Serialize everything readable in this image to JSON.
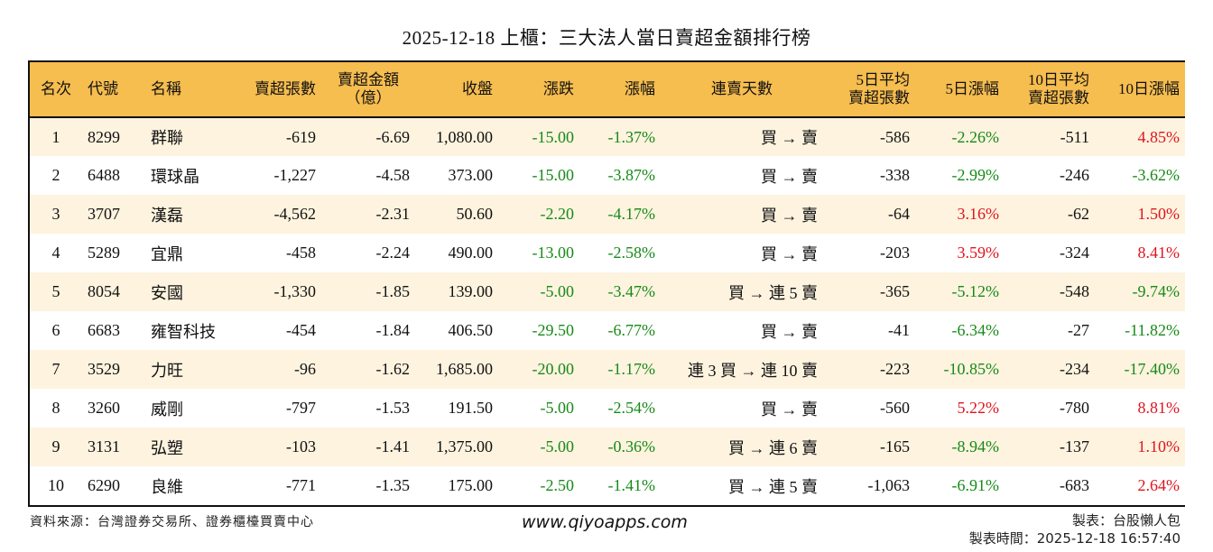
{
  "title": "2025-12-18 上櫃：三大法人當日賣超金額排行榜",
  "table": {
    "headers": [
      {
        "line1": "名次",
        "line2": ""
      },
      {
        "line1": "代號",
        "line2": ""
      },
      {
        "line1": "名稱",
        "line2": ""
      },
      {
        "line1": "賣超張數",
        "line2": ""
      },
      {
        "line1": "賣超金額",
        "line2": "（億）"
      },
      {
        "line1": "收盤",
        "line2": ""
      },
      {
        "line1": "漲跌",
        "line2": ""
      },
      {
        "line1": "漲幅",
        "line2": ""
      },
      {
        "line1": "連賣天數",
        "line2": ""
      },
      {
        "line1": "5日平均",
        "line2": "賣超張數"
      },
      {
        "line1": "5日漲幅",
        "line2": ""
      },
      {
        "line1": "10日平均",
        "line2": "賣超張數"
      },
      {
        "line1": "10日漲幅",
        "line2": ""
      }
    ],
    "rows": [
      {
        "rank": "1",
        "code": "8299",
        "name": "群聯",
        "sell_shares": "-619",
        "sell_amount": "-6.69",
        "close": "1,080.00",
        "change": "-15.00",
        "change_pct": "-1.37%",
        "streak": "買 → 賣",
        "avg5": "-586",
        "pct5": "-2.26%",
        "pct5_dir": "neg",
        "avg10": "-511",
        "pct10": "4.85%",
        "pct10_dir": "pos"
      },
      {
        "rank": "2",
        "code": "6488",
        "name": "環球晶",
        "sell_shares": "-1,227",
        "sell_amount": "-4.58",
        "close": "373.00",
        "change": "-15.00",
        "change_pct": "-3.87%",
        "streak": "買 → 賣",
        "avg5": "-338",
        "pct5": "-2.99%",
        "pct5_dir": "neg",
        "avg10": "-246",
        "pct10": "-3.62%",
        "pct10_dir": "neg"
      },
      {
        "rank": "3",
        "code": "3707",
        "name": "漢磊",
        "sell_shares": "-4,562",
        "sell_amount": "-2.31",
        "close": "50.60",
        "change": "-2.20",
        "change_pct": "-4.17%",
        "streak": "買 → 賣",
        "avg5": "-64",
        "pct5": "3.16%",
        "pct5_dir": "pos",
        "avg10": "-62",
        "pct10": "1.50%",
        "pct10_dir": "pos"
      },
      {
        "rank": "4",
        "code": "5289",
        "name": "宜鼎",
        "sell_shares": "-458",
        "sell_amount": "-2.24",
        "close": "490.00",
        "change": "-13.00",
        "change_pct": "-2.58%",
        "streak": "買 → 賣",
        "avg5": "-203",
        "pct5": "3.59%",
        "pct5_dir": "pos",
        "avg10": "-324",
        "pct10": "8.41%",
        "pct10_dir": "pos"
      },
      {
        "rank": "5",
        "code": "8054",
        "name": "安國",
        "sell_shares": "-1,330",
        "sell_amount": "-1.85",
        "close": "139.00",
        "change": "-5.00",
        "change_pct": "-3.47%",
        "streak": "買 → 連 5 賣",
        "avg5": "-365",
        "pct5": "-5.12%",
        "pct5_dir": "neg",
        "avg10": "-548",
        "pct10": "-9.74%",
        "pct10_dir": "neg"
      },
      {
        "rank": "6",
        "code": "6683",
        "name": "雍智科技",
        "sell_shares": "-454",
        "sell_amount": "-1.84",
        "close": "406.50",
        "change": "-29.50",
        "change_pct": "-6.77%",
        "streak": "買 → 賣",
        "avg5": "-41",
        "pct5": "-6.34%",
        "pct5_dir": "neg",
        "avg10": "-27",
        "pct10": "-11.82%",
        "pct10_dir": "neg"
      },
      {
        "rank": "7",
        "code": "3529",
        "name": "力旺",
        "sell_shares": "-96",
        "sell_amount": "-1.62",
        "close": "1,685.00",
        "change": "-20.00",
        "change_pct": "-1.17%",
        "streak": "連 3 買 → 連 10 賣",
        "avg5": "-223",
        "pct5": "-10.85%",
        "pct5_dir": "neg",
        "avg10": "-234",
        "pct10": "-17.40%",
        "pct10_dir": "neg"
      },
      {
        "rank": "8",
        "code": "3260",
        "name": "威剛",
        "sell_shares": "-797",
        "sell_amount": "-1.53",
        "close": "191.50",
        "change": "-5.00",
        "change_pct": "-2.54%",
        "streak": "買 → 賣",
        "avg5": "-560",
        "pct5": "5.22%",
        "pct5_dir": "pos",
        "avg10": "-780",
        "pct10": "8.81%",
        "pct10_dir": "pos"
      },
      {
        "rank": "9",
        "code": "3131",
        "name": "弘塑",
        "sell_shares": "-103",
        "sell_amount": "-1.41",
        "close": "1,375.00",
        "change": "-5.00",
        "change_pct": "-0.36%",
        "streak": "買 → 連 6 賣",
        "avg5": "-165",
        "pct5": "-8.94%",
        "pct5_dir": "neg",
        "avg10": "-137",
        "pct10": "1.10%",
        "pct10_dir": "pos"
      },
      {
        "rank": "10",
        "code": "6290",
        "name": "良維",
        "sell_shares": "-771",
        "sell_amount": "-1.35",
        "close": "175.00",
        "change": "-2.50",
        "change_pct": "-1.41%",
        "streak": "買 → 連 5 賣",
        "avg5": "-1,063",
        "pct5": "-6.91%",
        "pct5_dir": "neg",
        "avg10": "-683",
        "pct10": "2.64%",
        "pct10_dir": "pos"
      }
    ]
  },
  "colors": {
    "header_bg": "#f6bd4f",
    "row_odd_bg": "#fdf3df",
    "row_even_bg": "#ffffff",
    "negative": "#178a17",
    "positive": "#e0141e"
  },
  "footer": {
    "source": "資料來源：台灣證券交易所、證券櫃檯買賣中心",
    "website": "www.qiyoapps.com",
    "maker": "製表：台股懶人包",
    "made_time": "製表時間：2025-12-18 16:57:40"
  }
}
